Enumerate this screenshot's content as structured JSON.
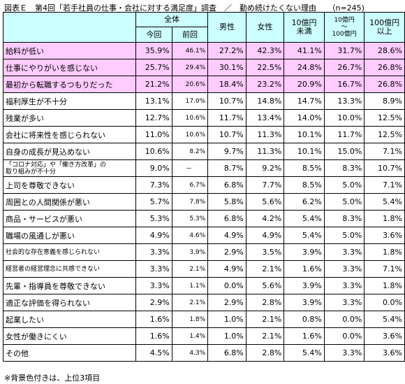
{
  "title": "図表Ｅ　第4回「若手社員の仕事・会社に対する満足度」調査　／　勤め続けたくない理由　　（n=245)",
  "columns": {
    "total": "全体",
    "current": "今回",
    "previous": "前回",
    "male": "男性",
    "female": "女性",
    "under10_l1": "10億円",
    "under10_l2": "未満",
    "mid_l1": "10億円",
    "mid_l2": "～",
    "mid_l3": "100億円",
    "over100_l1": "100億円",
    "over100_l2": "以上"
  },
  "rows": [
    {
      "label": "給料が低い",
      "current": "35.9%",
      "previous": "46.1%",
      "male": "27.2%",
      "female": "42.3%",
      "under10": "41.1%",
      "mid": "31.7%",
      "over100": "28.6%",
      "highlight": true
    },
    {
      "label": "仕事にやりがいを感じない",
      "current": "25.7%",
      "previous": "29.4%",
      "male": "30.1%",
      "female": "22.5%",
      "under10": "24.8%",
      "mid": "26.7%",
      "over100": "26.8%",
      "highlight": true
    },
    {
      "label": "最初から転職するつもりだった",
      "current": "21.2%",
      "previous": "20.6%",
      "male": "18.4%",
      "female": "23.2%",
      "under10": "20.9%",
      "mid": "16.7%",
      "over100": "26.8%",
      "highlight": true
    },
    {
      "label": "福利厚生が不十分",
      "current": "13.1%",
      "previous": "17.0%",
      "male": "10.7%",
      "female": "14.8%",
      "under10": "14.7%",
      "mid": "13.3%",
      "over100": "8.9%"
    },
    {
      "label": "残業が多い",
      "current": "12.7%",
      "previous": "10.6%",
      "male": "11.7%",
      "female": "13.4%",
      "under10": "14.0%",
      "mid": "10.0%",
      "over100": "12.5%"
    },
    {
      "label": "会社に将来性を感じられない",
      "current": "11.0%",
      "previous": "10.6%",
      "male": "10.7%",
      "female": "11.3%",
      "under10": "10.1%",
      "mid": "11.7%",
      "over100": "12.5%"
    },
    {
      "label": "自身の成長が見込めない",
      "current": "10.6%",
      "previous": "8.2%",
      "male": "9.7%",
      "female": "11.3%",
      "under10": "10.1%",
      "mid": "15.0%",
      "over100": "7.1%"
    },
    {
      "label_l1": "「コロナ対応」や「働き方改革」の",
      "label_l2": "取り組みが不十分",
      "current": "9.0%",
      "previous": "－",
      "male": "8.7%",
      "female": "9.2%",
      "under10": "8.5%",
      "mid": "8.3%",
      "over100": "10.7%"
    },
    {
      "label": "上司を尊敬できない",
      "current": "7.3%",
      "previous": "6.7%",
      "male": "6.8%",
      "female": "7.7%",
      "under10": "8.5%",
      "mid": "5.0%",
      "over100": "7.1%"
    },
    {
      "label": "周囲との人間関係が悪い",
      "current": "5.7%",
      "previous": "7.8%",
      "male": "5.8%",
      "female": "5.6%",
      "under10": "6.2%",
      "mid": "5.0%",
      "over100": "5.4%"
    },
    {
      "label": "商品・サービスが悪い",
      "current": "5.3%",
      "previous": "5.3%",
      "male": "6.8%",
      "female": "4.2%",
      "under10": "5.4%",
      "mid": "8.3%",
      "over100": "1.8%"
    },
    {
      "label": "職場の風通しが悪い",
      "current": "4.9%",
      "previous": "4.6%",
      "male": "4.9%",
      "female": "4.9%",
      "under10": "5.4%",
      "mid": "5.0%",
      "over100": "3.6%"
    },
    {
      "label": "社会的な存在意義を感じられない",
      "current": "3.3%",
      "previous": "3.9%",
      "male": "2.9%",
      "female": "3.5%",
      "under10": "3.9%",
      "mid": "3.3%",
      "over100": "1.8%",
      "small": true
    },
    {
      "label": "経営者の経営理念に共感できない",
      "current": "3.3%",
      "previous": "2.1%",
      "male": "4.9%",
      "female": "2.1%",
      "under10": "1.6%",
      "mid": "3.3%",
      "over100": "7.1%",
      "small": true
    },
    {
      "label": "先輩・指導員を尊敬できない",
      "current": "3.3%",
      "previous": "1.1%",
      "male": "0.0%",
      "female": "5.6%",
      "under10": "3.9%",
      "mid": "3.3%",
      "over100": "1.8%"
    },
    {
      "label": "適正な評価を得られない",
      "current": "2.9%",
      "previous": "2.1%",
      "male": "2.9%",
      "female": "2.8%",
      "under10": "3.9%",
      "mid": "3.3%",
      "over100": "0.0%"
    },
    {
      "label": "起業したい",
      "current": "1.6%",
      "previous": "1.8%",
      "male": "1.0%",
      "female": "2.1%",
      "under10": "0.8%",
      "mid": "0.0%",
      "over100": "5.4%"
    },
    {
      "label": "女性が働きにくい",
      "current": "1.6%",
      "previous": "1.4%",
      "male": "1.0%",
      "female": "2.1%",
      "under10": "1.6%",
      "mid": "0.0%",
      "over100": "3.6%"
    },
    {
      "label": "その他",
      "current": "4.5%",
      "previous": "4.3%",
      "male": "6.8%",
      "female": "2.8%",
      "under10": "5.4%",
      "mid": "3.3%",
      "over100": "3.6%"
    }
  ],
  "note": "※背景色付きは、上位3項目"
}
